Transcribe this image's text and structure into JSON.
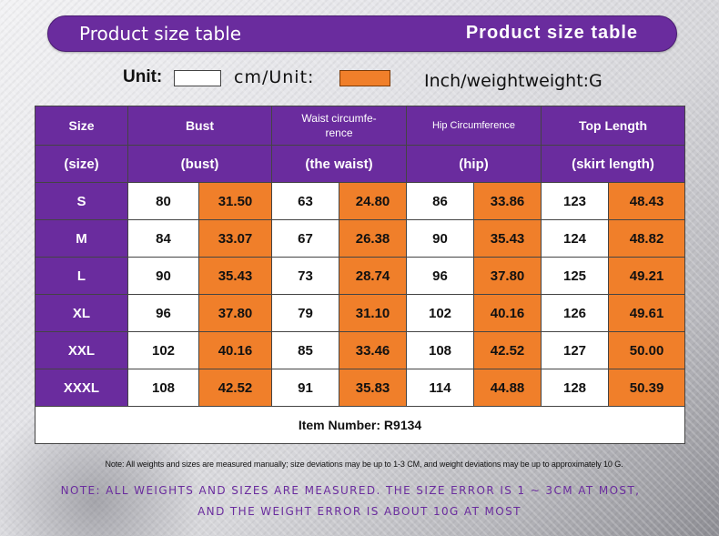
{
  "banner": {
    "left_title": "Product size table",
    "right_title": "Product size table"
  },
  "units": {
    "label_unit": "Unit:",
    "label_cm": "cm/Unit:",
    "label_inch": "Inch/weightweight:G",
    "cm_color": "#ffffff",
    "inch_color": "#f07f2a"
  },
  "colors": {
    "accent": "#6a2c9e",
    "inch_fill": "#f07f2a"
  },
  "table": {
    "headers_top": [
      "Size",
      "Bust",
      "Waist circumfe-\nrence",
      "Hip Circumference",
      "Top Length"
    ],
    "headers_bottom": [
      "(size)",
      "(bust)",
      "(the waist)",
      "(hip)",
      "(skirt length)"
    ],
    "rows": [
      {
        "size": "S",
        "bust_cm": "80",
        "bust_in": "31.50",
        "waist_cm": "63",
        "waist_in": "24.80",
        "hip_cm": "86",
        "hip_in": "33.86",
        "length_cm": "123",
        "length_in": "48.43"
      },
      {
        "size": "M",
        "bust_cm": "84",
        "bust_in": "33.07",
        "waist_cm": "67",
        "waist_in": "26.38",
        "hip_cm": "90",
        "hip_in": "35.43",
        "length_cm": "124",
        "length_in": "48.82"
      },
      {
        "size": "L",
        "bust_cm": "90",
        "bust_in": "35.43",
        "waist_cm": "73",
        "waist_in": "28.74",
        "hip_cm": "96",
        "hip_in": "37.80",
        "length_cm": "125",
        "length_in": "49.21"
      },
      {
        "size": "XL",
        "bust_cm": "96",
        "bust_in": "37.80",
        "waist_cm": "79",
        "waist_in": "31.10",
        "hip_cm": "102",
        "hip_in": "40.16",
        "length_cm": "126",
        "length_in": "49.61"
      },
      {
        "size": "XXL",
        "bust_cm": "102",
        "bust_in": "40.16",
        "waist_cm": "85",
        "waist_in": "33.46",
        "hip_cm": "108",
        "hip_in": "42.52",
        "length_cm": "127",
        "length_in": "50.00"
      },
      {
        "size": "XXXL",
        "bust_cm": "108",
        "bust_in": "42.52",
        "waist_cm": "91",
        "waist_in": "35.83",
        "hip_cm": "114",
        "hip_in": "44.88",
        "length_cm": "128",
        "length_in": "50.39"
      }
    ],
    "item_number": "Item Number: R9134"
  },
  "notes": {
    "small": "Note: All weights and sizes are measured manually; size deviations may be up to 1-3 CM, and weight deviations may be up to approximately 10 G.",
    "purple_line1": "NOTE: ALL WEIGHTS AND SIZES ARE MEASURED. THE SIZE ERROR IS 1 ~ 3CM AT MOST,",
    "purple_line2": "AND THE WEIGHT ERROR IS ABOUT 10G AT MOST"
  }
}
